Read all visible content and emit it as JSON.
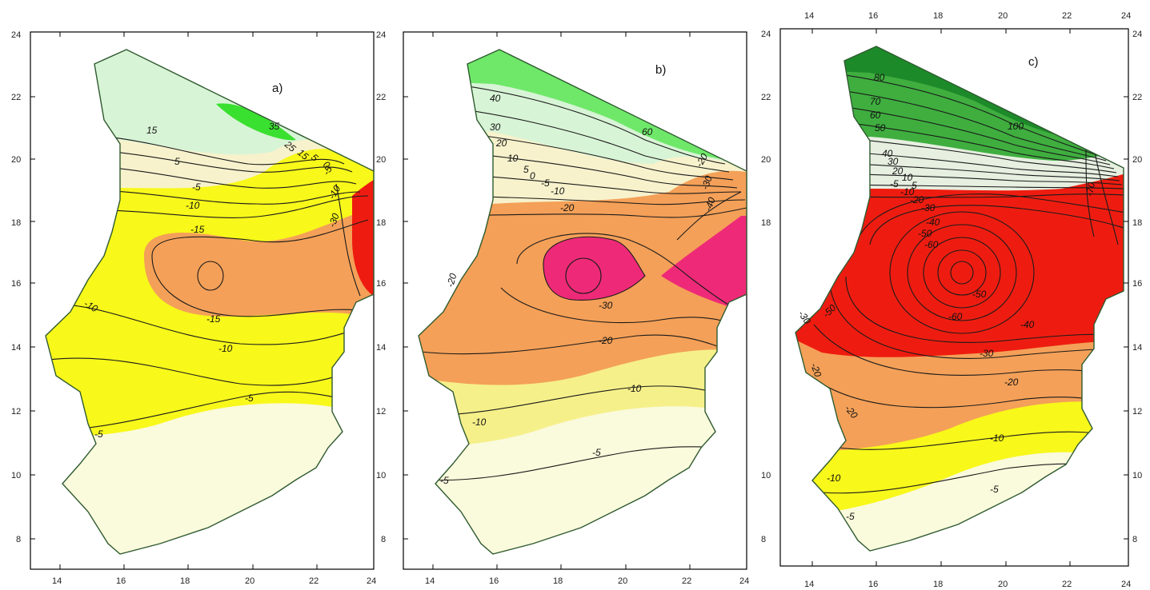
{
  "panels": [
    {
      "id": "a",
      "label": "a)",
      "x_ticks": [
        "14",
        "16",
        "18",
        "20",
        "22",
        "24"
      ],
      "y_ticks": [
        "8",
        "10",
        "12",
        "14",
        "16",
        "18",
        "20",
        "22",
        "24"
      ],
      "contour_labels": [
        "35",
        "15",
        "5",
        "-5",
        "-10",
        "-15",
        "-30",
        "-10",
        "-15",
        "-10",
        "-5",
        "-5",
        "25",
        "15",
        "5",
        "0",
        "-5",
        "-10"
      ],
      "colors": {
        "bg_south": "#fafadc",
        "yellow": "#f8f81a",
        "orange": "#f4a058",
        "red": "#ee1c10",
        "pale_green": "#d8f4d6",
        "green": "#3ae030",
        "cream": "#f7f2cc"
      }
    },
    {
      "id": "b",
      "label": "b)",
      "x_ticks": [
        "14",
        "16",
        "18",
        "20",
        "22",
        "24"
      ],
      "y_ticks": [
        "8",
        "10",
        "12",
        "14",
        "16",
        "18",
        "20",
        "22",
        "24"
      ],
      "contour_labels": [
        "40",
        "30",
        "20",
        "10",
        "5",
        "0",
        "-5",
        "-10",
        "-20",
        "-20",
        "-30",
        "-20",
        "-10",
        "-10",
        "-5",
        "-5",
        "60",
        "-20",
        "-30",
        "-40"
      ],
      "colors": {
        "bg_south": "#fafadc",
        "light_yellow": "#f6f08a",
        "orange": "#f4a058",
        "magenta": "#ee2a78",
        "pale_green": "#d8f4d6",
        "green": "#6fe86a",
        "cream": "#f7f2cc"
      }
    },
    {
      "id": "c",
      "label": "c)",
      "x_ticks": [
        "14",
        "16",
        "18",
        "20",
        "22",
        "24"
      ],
      "y_ticks": [
        "8",
        "10",
        "12",
        "14",
        "16",
        "18",
        "20",
        "22",
        "24"
      ],
      "contour_labels": [
        "80",
        "70",
        "60",
        "50",
        "40",
        "30",
        "20",
        "10",
        "5",
        "-5",
        "-10",
        "-20",
        "-30",
        "-40",
        "-50",
        "-60",
        "-50",
        "-60",
        "-50",
        "-40",
        "-30",
        "-30",
        "-20",
        "-20",
        "-20",
        "-10",
        "-10",
        "-5",
        "-5",
        "100",
        "-70"
      ],
      "colors": {
        "bg_south": "#fafadc",
        "yellow": "#f8f81a",
        "orange": "#f4a058",
        "red": "#ee1c10",
        "dark_green": "#1d8a2a",
        "green": "#3fae3f",
        "pale": "#e6efe0"
      }
    }
  ]
}
